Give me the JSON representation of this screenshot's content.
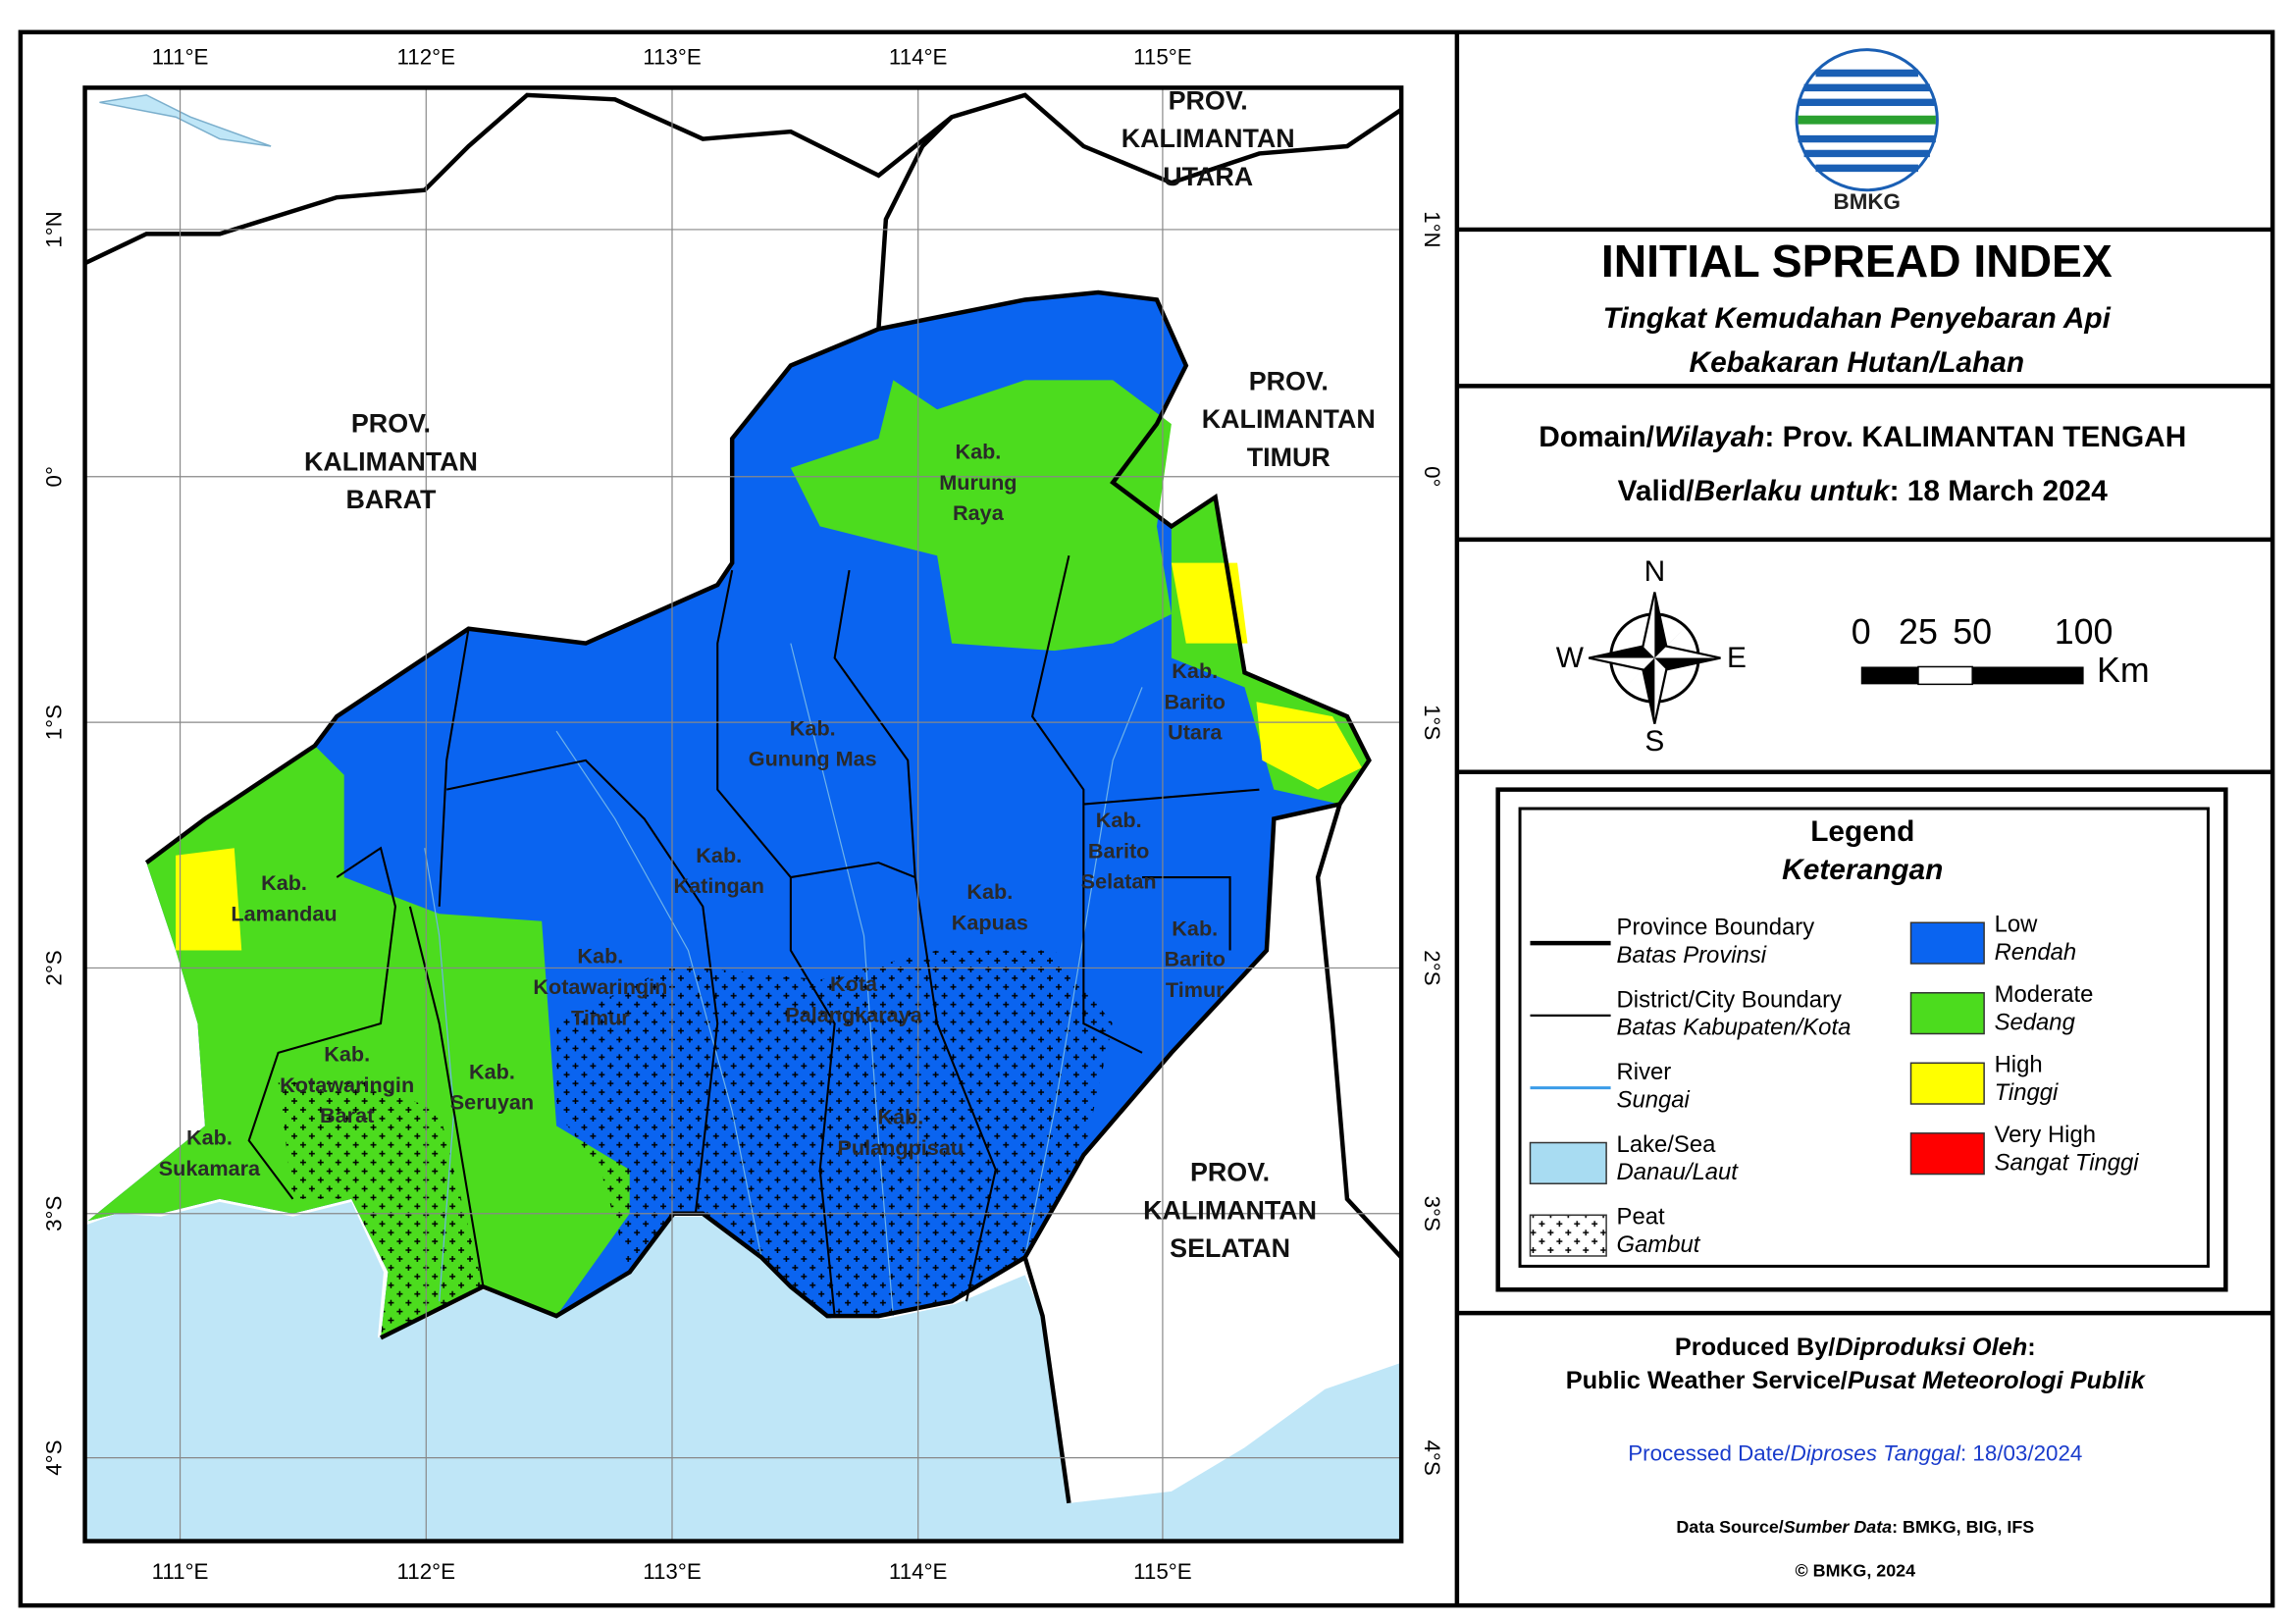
{
  "map": {
    "lon_labels": [
      "111°E",
      "112°E",
      "113°E",
      "114°E",
      "115°E"
    ],
    "lat_labels": [
      "1°N",
      "0°",
      "1°S",
      "2°S",
      "3°S",
      "4°S"
    ],
    "provinces": [
      [
        "PROV.",
        "KALIMANTAN",
        "UTARA"
      ],
      [
        "PROV.",
        "KALIMANTAN",
        "BARAT"
      ],
      [
        "PROV.",
        "KALIMANTAN",
        "TIMUR"
      ],
      [
        "PROV.",
        "KALIMANTAN",
        "SELATAN"
      ]
    ],
    "districts": [
      [
        "Kab.",
        "Murung",
        "Raya"
      ],
      [
        "Kab.",
        "Barito",
        "Utara"
      ],
      [
        "Kab.",
        "Gunung Mas"
      ],
      [
        "Kab.",
        "Katingan"
      ],
      [
        "Kab.",
        "Lamandau"
      ],
      [
        "Kab.",
        "Barito",
        "Selatan"
      ],
      [
        "Kab.",
        "Kapuas"
      ],
      [
        "Kab.",
        "Barito",
        "Timur"
      ],
      [
        "Kab.",
        "Kotawaringin",
        "Timur"
      ],
      [
        "Kota",
        "Palangkaraya"
      ],
      [
        "Kab.",
        "Kotawaringin",
        "Barat"
      ],
      [
        "Kab.",
        "Seruyan"
      ],
      [
        "Kab.",
        "Sukamara"
      ],
      [
        "Kab.",
        "Pulangpisau"
      ]
    ]
  },
  "header": {
    "logo": "BMKG",
    "title": "INITIAL SPREAD INDEX",
    "subtitle": [
      "Tingkat Kemudahan Penyebaran Api",
      "Kebakaran Hutan/Lahan"
    ]
  },
  "info": {
    "domain": [
      "Domain/",
      "Wilayah",
      ": Prov. KALIMANTAN TENGAH"
    ],
    "valid": [
      "Valid/",
      "Berlaku untuk",
      ": 18 March 2024"
    ]
  },
  "compass": [
    "N",
    "E",
    "S",
    "W"
  ],
  "scale": {
    "ticks": [
      "0",
      "25",
      "50",
      "100"
    ],
    "unit": "Km"
  },
  "legend": {
    "title": "Legend",
    "subtitle": "Keterangan",
    "items": [
      {
        "label": "Province Boundary",
        "sublabel": "Batas Provinsi"
      },
      {
        "label": "District/City Boundary",
        "sublabel": "Batas Kabupaten/Kota"
      },
      {
        "label": "River",
        "sublabel": "Sungai"
      },
      {
        "label": "Lake/Sea",
        "sublabel": "Danau/Laut"
      },
      {
        "label": "Peat",
        "sublabel": "Gambut"
      },
      {
        "label": "Low",
        "sublabel": "Rendah",
        "color": "#0a64f0"
      },
      {
        "label": "Moderate",
        "sublabel": "Sedang",
        "color": "#4cdc1e"
      },
      {
        "label": "High",
        "sublabel": "Tinggi",
        "color": "#ffff00"
      },
      {
        "label": "Very High",
        "sublabel": "Sangat Tinggi",
        "color": "#ff0000"
      }
    ]
  },
  "footer": {
    "produced": [
      "Produced By/",
      "Diproduksi Oleh",
      ":"
    ],
    "producer": [
      "Public Weather Service/",
      "Pusat Meteorologi Publik"
    ],
    "processed": [
      "Processed Date/",
      "Diproses Tanggal",
      ": 18/03/2024"
    ],
    "source": [
      "Data Source/",
      "Sumber Data",
      ": BMKG, BIG, IFS"
    ],
    "copyright": "© BMKG, 2024"
  }
}
